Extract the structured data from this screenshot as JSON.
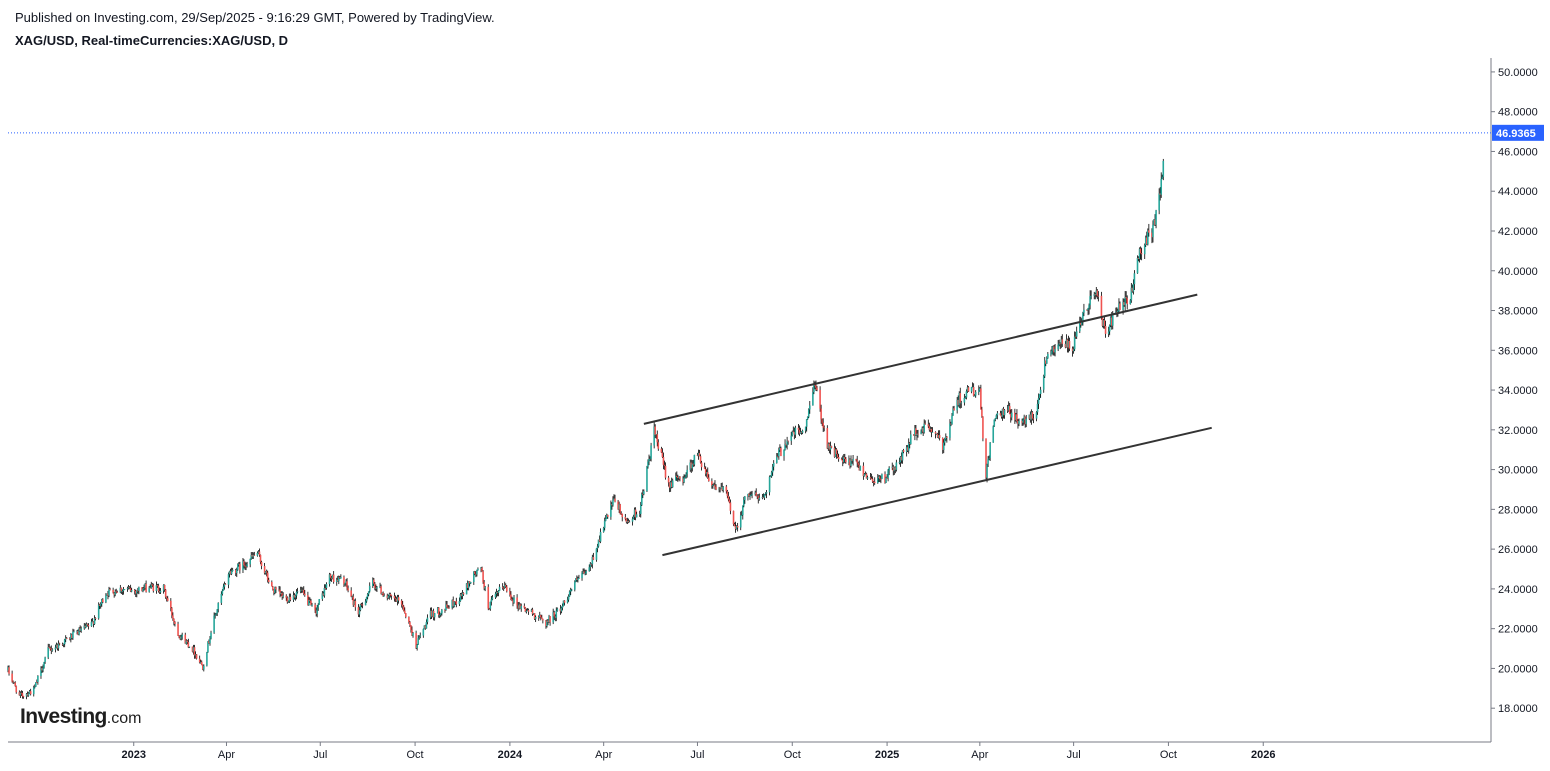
{
  "header": {
    "published": "Published on Investing.com, 29/Sep/2025 - 9:16:29 GMT, Powered by TradingView.",
    "symbol": "XAG/USD, Real-timeCurrencies:XAG/USD, D"
  },
  "logo": {
    "main": "Investing",
    "suffix": ".com"
  },
  "colors": {
    "up": "#26a69a",
    "down": "#ef5350",
    "wick": "#000000",
    "price_label": "#2962ff",
    "trendline": "#333333"
  },
  "chart_data": {
    "type": "candlestick",
    "ylim": [
      16.3,
      50.7
    ],
    "x_start": "2022-09-01",
    "x_end": "2026-08-10",
    "y_ticks": [
      "50.0000",
      "48.0000",
      "46.0000",
      "44.0000",
      "42.0000",
      "40.0000",
      "38.0000",
      "36.0000",
      "34.0000",
      "32.0000",
      "30.0000",
      "28.0000",
      "26.0000",
      "24.0000",
      "22.0000",
      "20.0000",
      "18.0000"
    ],
    "x_ticks": [
      {
        "label": "2023",
        "date": "2023-01-01",
        "bold": true
      },
      {
        "label": "Apr",
        "date": "2023-04-01",
        "bold": false
      },
      {
        "label": "Jul",
        "date": "2023-07-01",
        "bold": false
      },
      {
        "label": "Oct",
        "date": "2023-10-01",
        "bold": false
      },
      {
        "label": "2024",
        "date": "2024-01-01",
        "bold": true
      },
      {
        "label": "Apr",
        "date": "2024-04-01",
        "bold": false
      },
      {
        "label": "Jul",
        "date": "2024-07-01",
        "bold": false
      },
      {
        "label": "Oct",
        "date": "2024-10-01",
        "bold": false
      },
      {
        "label": "2025",
        "date": "2025-01-01",
        "bold": true
      },
      {
        "label": "Apr",
        "date": "2025-04-01",
        "bold": false
      },
      {
        "label": "Jul",
        "date": "2025-07-01",
        "bold": false
      },
      {
        "label": "Oct",
        "date": "2025-10-01",
        "bold": false
      },
      {
        "label": "2026",
        "date": "2026-01-01",
        "bold": true
      }
    ],
    "last_price": 46.9365,
    "last_price_label": "46.9365",
    "close_series": [
      {
        "date": "2022-09-01",
        "close": 19.9
      },
      {
        "date": "2022-09-12",
        "close": 18.6
      },
      {
        "date": "2022-09-26",
        "close": 18.9
      },
      {
        "date": "2022-10-10",
        "close": 20.9
      },
      {
        "date": "2022-10-24",
        "close": 21.3
      },
      {
        "date": "2022-11-07",
        "close": 21.8
      },
      {
        "date": "2022-11-21",
        "close": 22.2
      },
      {
        "date": "2022-12-05",
        "close": 23.8
      },
      {
        "date": "2022-12-19",
        "close": 24.0
      },
      {
        "date": "2023-01-02",
        "close": 23.9
      },
      {
        "date": "2023-01-16",
        "close": 24.1
      },
      {
        "date": "2023-01-30",
        "close": 24.0
      },
      {
        "date": "2023-02-13",
        "close": 21.8
      },
      {
        "date": "2023-02-27",
        "close": 21.0
      },
      {
        "date": "2023-03-09",
        "close": 20.1
      },
      {
        "date": "2023-03-20",
        "close": 22.5
      },
      {
        "date": "2023-04-03",
        "close": 24.8
      },
      {
        "date": "2023-04-17",
        "close": 25.2
      },
      {
        "date": "2023-05-01",
        "close": 25.8
      },
      {
        "date": "2023-05-15",
        "close": 24.0
      },
      {
        "date": "2023-05-29",
        "close": 23.5
      },
      {
        "date": "2023-06-12",
        "close": 23.9
      },
      {
        "date": "2023-06-26",
        "close": 22.8
      },
      {
        "date": "2023-07-10",
        "close": 24.6
      },
      {
        "date": "2023-07-24",
        "close": 24.4
      },
      {
        "date": "2023-08-07",
        "close": 22.8
      },
      {
        "date": "2023-08-21",
        "close": 24.3
      },
      {
        "date": "2023-09-04",
        "close": 23.6
      },
      {
        "date": "2023-09-18",
        "close": 23.3
      },
      {
        "date": "2023-10-02",
        "close": 21.2
      },
      {
        "date": "2023-10-16",
        "close": 22.7
      },
      {
        "date": "2023-10-30",
        "close": 23.0
      },
      {
        "date": "2023-11-13",
        "close": 23.5
      },
      {
        "date": "2023-11-27",
        "close": 24.7
      },
      {
        "date": "2023-12-04",
        "close": 25.0
      },
      {
        "date": "2023-12-11",
        "close": 23.1
      },
      {
        "date": "2023-12-26",
        "close": 24.2
      },
      {
        "date": "2024-01-08",
        "close": 23.2
      },
      {
        "date": "2024-01-22",
        "close": 22.8
      },
      {
        "date": "2024-02-05",
        "close": 22.3
      },
      {
        "date": "2024-02-19",
        "close": 23.0
      },
      {
        "date": "2024-03-04",
        "close": 24.3
      },
      {
        "date": "2024-03-18",
        "close": 25.0
      },
      {
        "date": "2024-04-01",
        "close": 27.2
      },
      {
        "date": "2024-04-12",
        "close": 28.5
      },
      {
        "date": "2024-04-22",
        "close": 27.3
      },
      {
        "date": "2024-05-06",
        "close": 28.0
      },
      {
        "date": "2024-05-20",
        "close": 31.9
      },
      {
        "date": "2024-06-03",
        "close": 29.3
      },
      {
        "date": "2024-06-17",
        "close": 29.6
      },
      {
        "date": "2024-07-01",
        "close": 30.8
      },
      {
        "date": "2024-07-15",
        "close": 29.3
      },
      {
        "date": "2024-07-29",
        "close": 28.8
      },
      {
        "date": "2024-08-07",
        "close": 27.0
      },
      {
        "date": "2024-08-19",
        "close": 28.9
      },
      {
        "date": "2024-09-02",
        "close": 28.5
      },
      {
        "date": "2024-09-16",
        "close": 30.6
      },
      {
        "date": "2024-09-30",
        "close": 31.8
      },
      {
        "date": "2024-10-14",
        "close": 32.0
      },
      {
        "date": "2024-10-22",
        "close": 34.5
      },
      {
        "date": "2024-11-04",
        "close": 31.3
      },
      {
        "date": "2024-11-18",
        "close": 30.4
      },
      {
        "date": "2024-12-02",
        "close": 30.3
      },
      {
        "date": "2024-12-16",
        "close": 29.5
      },
      {
        "date": "2024-12-30",
        "close": 29.6
      },
      {
        "date": "2025-01-13",
        "close": 30.4
      },
      {
        "date": "2025-01-27",
        "close": 31.8
      },
      {
        "date": "2025-02-10",
        "close": 32.2
      },
      {
        "date": "2025-02-24",
        "close": 31.2
      },
      {
        "date": "2025-03-10",
        "close": 33.5
      },
      {
        "date": "2025-03-24",
        "close": 34.0
      },
      {
        "date": "2025-04-01",
        "close": 33.8
      },
      {
        "date": "2025-04-07",
        "close": 29.6
      },
      {
        "date": "2025-04-14",
        "close": 32.4
      },
      {
        "date": "2025-04-28",
        "close": 33.0
      },
      {
        "date": "2025-05-12",
        "close": 32.3
      },
      {
        "date": "2025-05-26",
        "close": 33.0
      },
      {
        "date": "2025-06-05",
        "close": 35.8
      },
      {
        "date": "2025-06-16",
        "close": 36.4
      },
      {
        "date": "2025-06-30",
        "close": 36.1
      },
      {
        "date": "2025-07-14",
        "close": 38.2
      },
      {
        "date": "2025-07-22",
        "close": 39.1
      },
      {
        "date": "2025-08-01",
        "close": 36.8
      },
      {
        "date": "2025-08-11",
        "close": 37.9
      },
      {
        "date": "2025-08-25",
        "close": 38.6
      },
      {
        "date": "2025-09-02",
        "close": 40.8
      },
      {
        "date": "2025-09-10",
        "close": 41.6
      },
      {
        "date": "2025-09-18",
        "close": 42.3
      },
      {
        "date": "2025-09-23",
        "close": 44.2
      },
      {
        "date": "2025-09-29",
        "close": 46.9365
      }
    ],
    "trend_lines": [
      {
        "name": "upper-channel",
        "start": {
          "date": "2024-05-10",
          "value": 32.3
        },
        "end": {
          "date": "2025-10-29",
          "value": 38.8
        }
      },
      {
        "name": "lower-channel",
        "start": {
          "date": "2024-05-28",
          "value": 25.7
        },
        "end": {
          "date": "2025-11-12",
          "value": 32.1
        }
      }
    ]
  }
}
